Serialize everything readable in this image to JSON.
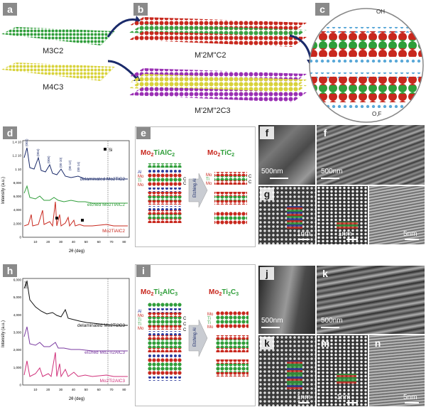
{
  "panels": {
    "a": "a",
    "b": "b",
    "c": "c",
    "d": "d",
    "e": "e",
    "f": "f",
    "f2": "f",
    "g": "g",
    "h": "h",
    "i": "i",
    "j": "j",
    "k": "k",
    "k2": "k",
    "m": "m",
    "n": "n"
  },
  "top": {
    "m3c2": "M3C2",
    "m4c3": "M4C3",
    "m2mc2": "M'2M\"C2",
    "m2m2c3": "M'2M\"2C3",
    "oh": "OH",
    "of": "O,F"
  },
  "d": {
    "ylabel": "Intensity (a.u.)",
    "xlabel": "2θ (deg)",
    "yticks": [
      "1.4 10",
      "1.2 10",
      "1 10",
      "8,000",
      "6,000",
      "4,000",
      "2,000",
      "0"
    ],
    "xticks": [
      "10",
      "20",
      "30",
      "40",
      "50",
      "60",
      "70",
      "80"
    ],
    "legend_si": "Si",
    "traces": [
      "delaminated Mo2TiC2",
      "etched Mo2TiAlC2",
      "Mo2TiAlC2"
    ],
    "peaks_top": [
      "(002)",
      "(004)",
      "(006)",
      "(00 10)",
      "(00 12)",
      "(00 14)"
    ]
  },
  "h": {
    "ylabel": "Intensity (a.u.)",
    "xlabel": "2θ (deg)",
    "yticks": [
      "6,000",
      "5,000",
      "4,000",
      "3,000",
      "2,000",
      "1,000",
      "0"
    ],
    "xticks": [
      "10",
      "20",
      "30",
      "40",
      "50",
      "60",
      "70",
      "80"
    ],
    "traces": [
      "delaminated Mo2Ti2C3",
      "etched Mo2Ti2AlC3",
      "Mo2Ti2AlC3"
    ],
    "peak_top": "(002)"
  },
  "e": {
    "left_title_a": "Mo",
    "left_title_b": "2",
    "left_title_c": "TiAlC",
    "left_title_d": "2",
    "right_title_a": "Mo",
    "right_title_b": "2",
    "right_title_c": "TiC",
    "right_title_d": "2",
    "arrow": "Etching Al",
    "labels_left": [
      "Al",
      "Mo",
      "Ti",
      "Mo"
    ],
    "labels_right": [
      "Mo",
      "Ti",
      "Mo"
    ],
    "c": "C"
  },
  "i": {
    "left_title_a": "Mo",
    "left_title_b": "2",
    "left_title_c": "Ti",
    "left_title_d": "2",
    "left_title_e": "AlC",
    "left_title_f": "3",
    "right_title_a": "Mo",
    "right_title_b": "2",
    "right_title_c": "Ti",
    "right_title_d": "2",
    "right_title_e": "C",
    "right_title_f": "3",
    "arrow": "Etching Al",
    "labels_left": [
      "Al",
      "Mo",
      "Ti",
      "Ti",
      "Mo"
    ],
    "labels_right": [
      "Mo",
      "Ti",
      "Ti",
      "Mo"
    ],
    "c": "C"
  },
  "scales": {
    "f": "500nm",
    "f2": "500nm",
    "g": "1nm",
    "g2": "1nm",
    "g3": "5nm",
    "j": "500nm",
    "k": "500nm",
    "k2": "1nm",
    "m": "1nm",
    "n": "5nm"
  },
  "colors": {
    "green": "#2f9e3a",
    "red": "#c8281e",
    "yellow": "#d8d23a",
    "purple": "#9a2fb4",
    "blue": "#2d3c9c",
    "pink": "#d0307a",
    "darkblue": "#1a2a6a"
  }
}
